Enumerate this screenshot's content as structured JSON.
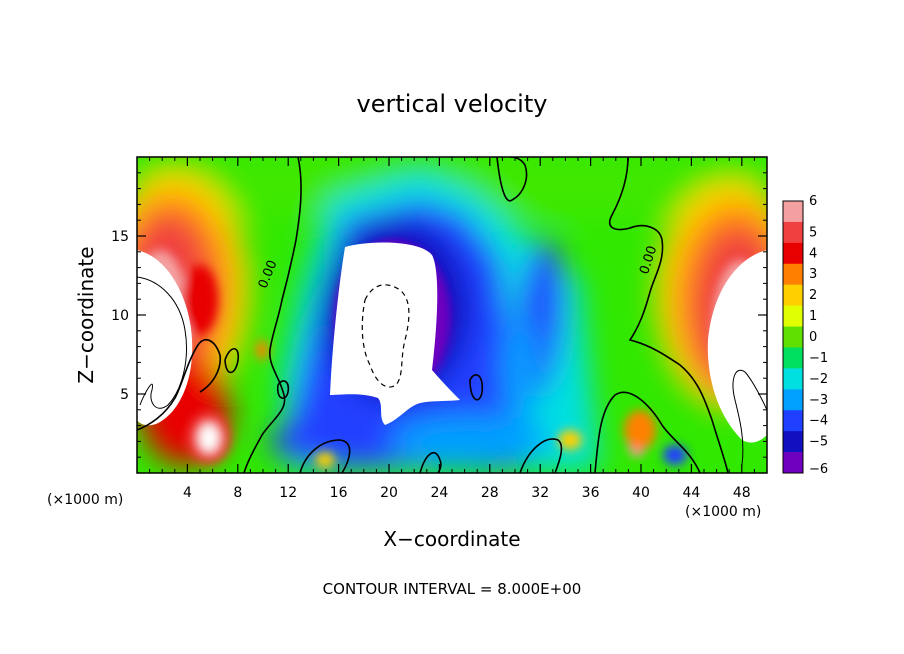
{
  "chart_data": {
    "type": "heatmap",
    "title": "vertical velocity",
    "xlabel": "X−coordinate",
    "ylabel": "Z−coordinate",
    "x_unit": "(×1000 m)",
    "y_unit": "(×1000 m)",
    "xlim": [
      0,
      50
    ],
    "ylim": [
      0,
      20
    ],
    "x_ticks": [
      4,
      8,
      12,
      16,
      20,
      24,
      28,
      32,
      36,
      40,
      44,
      48
    ],
    "x_tick_labels": [
      "4",
      "8",
      "12",
      "16",
      "20",
      "24",
      "28",
      "32",
      "36",
      "40",
      "44",
      "48"
    ],
    "y_ticks": [
      5,
      10,
      15
    ],
    "y_tick_labels": [
      "5",
      "10",
      "15"
    ],
    "colorbar": {
      "levels": [
        6,
        5,
        4,
        3,
        2,
        1,
        0,
        -1,
        -2,
        -3,
        -4,
        -5,
        -6
      ],
      "labels": [
        "6",
        "5",
        "4",
        "3",
        "2",
        "1",
        "0",
        "−1",
        "−2",
        "−3",
        "−4",
        "−5",
        "−6"
      ],
      "colors": [
        "#f4a0a0",
        "#f04040",
        "#e80000",
        "#ff8000",
        "#ffd000",
        "#e0ff00",
        "#60e000",
        "#00e060",
        "#00e0e0",
        "#00a0ff",
        "#2040ff",
        "#1010c0",
        "#7000c0"
      ]
    },
    "contour_labels": [
      {
        "text": "0.00",
        "x": 10.3,
        "z": 12.6,
        "angle": -68
      },
      {
        "text": "0.00",
        "x": 40.5,
        "z": 13.5,
        "angle": -72
      }
    ],
    "regions": [
      {
        "name": "updraft-left",
        "value": 6,
        "cx": 3.0,
        "cz": 11.0
      },
      {
        "name": "updraft-right",
        "value": 6,
        "cx": 47.5,
        "cz": 10.5
      },
      {
        "name": "downdraft-core",
        "value": -6,
        "cx": 21.5,
        "cz": 10.0
      }
    ],
    "footer": "CONTOUR INTERVAL = 8.000E+00"
  }
}
